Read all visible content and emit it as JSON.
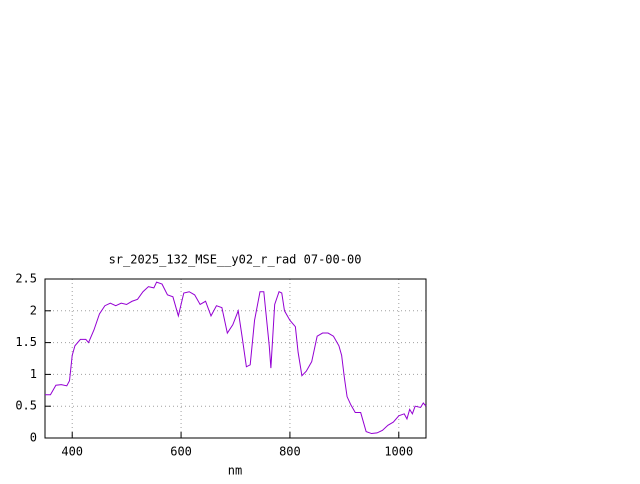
{
  "chart_data": {
    "type": "line",
    "title": "sr_2025_132_MSE__y02_r_rad 07-00-00",
    "xlabel": "nm",
    "x": [
      350,
      360,
      370,
      380,
      390,
      395,
      400,
      405,
      415,
      425,
      430,
      440,
      450,
      460,
      470,
      480,
      490,
      500,
      510,
      520,
      530,
      540,
      550,
      555,
      565,
      575,
      585,
      595,
      605,
      615,
      625,
      635,
      645,
      655,
      665,
      675,
      685,
      695,
      705,
      712,
      720,
      727,
      735,
      745,
      752,
      762,
      765,
      772,
      780,
      785,
      790,
      800,
      810,
      815,
      822,
      830,
      840,
      850,
      860,
      870,
      880,
      890,
      895,
      900,
      905,
      912,
      920,
      930,
      940,
      950,
      960,
      970,
      980,
      990,
      1000,
      1010,
      1015,
      1020,
      1025,
      1030,
      1040,
      1045,
      1050
    ],
    "series": [
      {
        "name": "sr_2025_132_MSE__y02_r_rad",
        "color": "#9400d3",
        "values": [
          0.68,
          0.68,
          0.83,
          0.84,
          0.82,
          0.9,
          1.3,
          1.45,
          1.55,
          1.55,
          1.5,
          1.7,
          1.95,
          2.08,
          2.12,
          2.08,
          2.12,
          2.1,
          2.15,
          2.18,
          2.3,
          2.38,
          2.36,
          2.45,
          2.42,
          2.25,
          2.22,
          1.92,
          2.28,
          2.3,
          2.25,
          2.1,
          2.15,
          1.92,
          2.08,
          2.05,
          1.65,
          1.78,
          2.0,
          1.6,
          1.12,
          1.15,
          1.85,
          2.3,
          2.3,
          1.45,
          1.1,
          2.1,
          2.3,
          2.28,
          2.0,
          1.85,
          1.75,
          1.35,
          0.98,
          1.05,
          1.2,
          1.6,
          1.65,
          1.65,
          1.6,
          1.45,
          1.3,
          0.95,
          0.65,
          0.52,
          0.4,
          0.4,
          0.1,
          0.07,
          0.08,
          0.12,
          0.2,
          0.25,
          0.35,
          0.38,
          0.3,
          0.45,
          0.38,
          0.5,
          0.48,
          0.55,
          0.5
        ]
      }
    ],
    "xlim": [
      350,
      1050
    ],
    "xticks": [
      400,
      600,
      800,
      1000
    ],
    "ylim": [
      0,
      2.5
    ],
    "yticks": [
      0,
      0.5,
      1,
      1.5,
      2,
      2.5
    ],
    "grid": true
  }
}
